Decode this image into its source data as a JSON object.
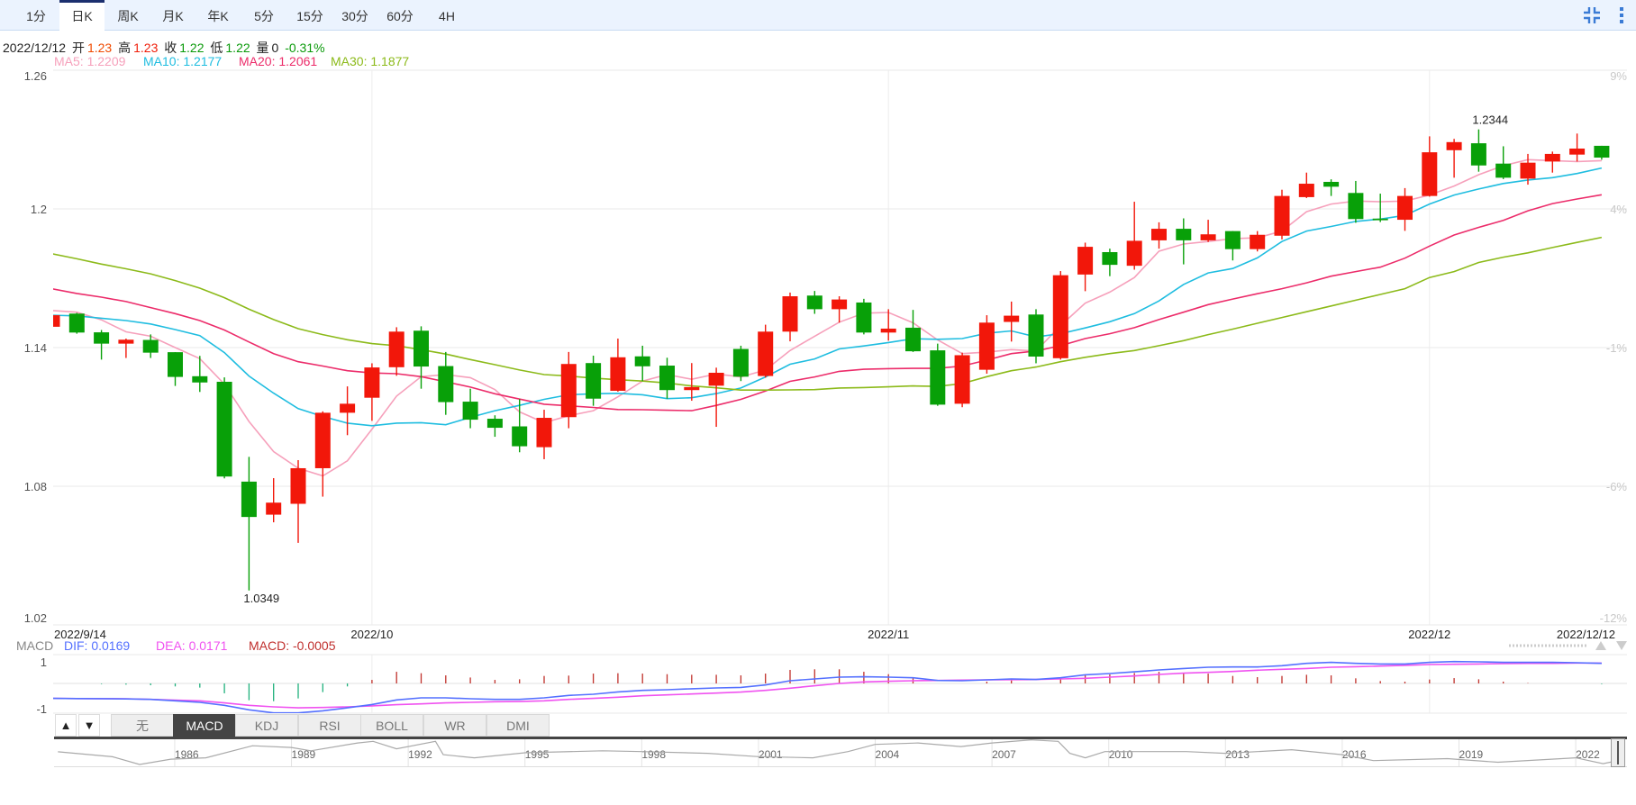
{
  "toolbar": {
    "tabs": [
      "1分",
      "日K",
      "周K",
      "月K",
      "年K",
      "5分",
      "15分",
      "30分",
      "60分",
      "4H"
    ],
    "active_tab": "日K",
    "icons": [
      "compress-icon",
      "more-vertical-icon"
    ]
  },
  "info": {
    "date": "2022/12/12",
    "open_label": "开",
    "open": "1.23",
    "high_label": "高",
    "high": "1.23",
    "close_label": "收",
    "close": "1.22",
    "low_label": "低",
    "low": "1.22",
    "vol_label": "量",
    "vol": "0",
    "change": "-0.31%"
  },
  "ma_legend": {
    "ma5": "MA5: 1.2209",
    "ma10": "MA10: 1.2177",
    "ma20": "MA20: 1.2061",
    "ma30": "MA30: 1.1877"
  },
  "macd_legend": {
    "title": "MACD",
    "dif": "DIF: 0.0169",
    "dea": "DEA: 0.0171",
    "macd": "MACD: -0.0005"
  },
  "indicator_tabs": [
    "无",
    "MACD",
    "KDJ",
    "RSI",
    "BOLL",
    "WR",
    "DMI"
  ],
  "active_indicator": "MACD",
  "arrow_buttons": [
    "▲",
    "▼"
  ],
  "colors": {
    "up": "#f2170a",
    "down": "#08a008",
    "ma5": "#f6a0bb",
    "ma10": "#1fbde0",
    "ma20": "#ec2c6a",
    "ma30": "#8cba1a",
    "dif": "#5470ff",
    "dea": "#f052f0",
    "macd_legend": "#c0302e",
    "hist_up": "#c0302a",
    "hist_down": "#1fb07c"
  },
  "chart_data": [
    {
      "type": "candlestick",
      "ylim": [
        1.02,
        1.26
      ],
      "y_ticks": [
        {
          "value": 1.26,
          "label": "1.26"
        },
        {
          "value": 1.2,
          "label": "1.2"
        },
        {
          "value": 1.14,
          "label": "1.14"
        },
        {
          "value": 1.08,
          "label": "1.08"
        },
        {
          "value": 1.02,
          "label": "1.02"
        }
      ],
      "y_ticks_right": [
        "9%",
        "4%",
        "-1%",
        "-6%",
        "-12%"
      ],
      "x_labels": [
        {
          "index": 0,
          "label": "2022/9/14"
        },
        {
          "index": 13,
          "label": "2022/10"
        },
        {
          "index": 34,
          "label": "2022/11"
        },
        {
          "index": 56,
          "label": "2022/12"
        },
        {
          "index": 63,
          "label": "2022/12/12"
        }
      ],
      "annotations": [
        {
          "index": 8,
          "value": 1.0349,
          "label": "1.0349",
          "pos": "below"
        },
        {
          "index": 58,
          "value": 1.2344,
          "label": "1.2344",
          "pos": "above"
        }
      ],
      "ohlc": [
        [
          1.149,
          1.1545,
          1.1488,
          1.154
        ],
        [
          1.1547,
          1.155,
          1.146,
          1.1465
        ],
        [
          1.1466,
          1.1476,
          1.1348,
          1.1417
        ],
        [
          1.1417,
          1.1439,
          1.1355,
          1.1434
        ],
        [
          1.1433,
          1.1457,
          1.1355,
          1.1378
        ],
        [
          1.138,
          1.138,
          1.1234,
          1.1273
        ],
        [
          1.1276,
          1.1364,
          1.1208,
          1.1249
        ],
        [
          1.1252,
          1.1271,
          1.0834,
          1.0842
        ],
        [
          1.082,
          1.0927,
          1.0349,
          1.0667
        ],
        [
          1.0677,
          1.0835,
          1.0644,
          1.0729
        ],
        [
          1.0724,
          1.0913,
          1.0555,
          1.0878
        ],
        [
          1.0878,
          1.1124,
          1.0755,
          1.1118
        ],
        [
          1.1118,
          1.1232,
          1.1021,
          1.1157
        ],
        [
          1.1183,
          1.1332,
          1.1083,
          1.1314
        ],
        [
          1.1315,
          1.1488,
          1.1278,
          1.1469
        ],
        [
          1.1473,
          1.1492,
          1.1222,
          1.1318
        ],
        [
          1.132,
          1.1381,
          1.1109,
          1.1164
        ],
        [
          1.1166,
          1.1222,
          1.1051,
          1.1088
        ],
        [
          1.1092,
          1.1107,
          1.1014,
          1.1053
        ],
        [
          1.1059,
          1.1177,
          1.0947,
          1.0973
        ],
        [
          1.0969,
          1.1131,
          1.0917,
          1.1096
        ],
        [
          1.1099,
          1.1381,
          1.1051,
          1.1329
        ],
        [
          1.1333,
          1.1365,
          1.1148,
          1.1179
        ],
        [
          1.1213,
          1.1439,
          1.1209,
          1.1358
        ],
        [
          1.1362,
          1.1408,
          1.1255,
          1.1319
        ],
        [
          1.1322,
          1.1356,
          1.1179,
          1.1216
        ],
        [
          1.1216,
          1.1333,
          1.117,
          1.1229
        ],
        [
          1.1235,
          1.1313,
          1.1057,
          1.1291
        ],
        [
          1.1394,
          1.1408,
          1.1255,
          1.1274
        ],
        [
          1.1277,
          1.1499,
          1.127,
          1.1469
        ],
        [
          1.1469,
          1.1638,
          1.1427,
          1.1622
        ],
        [
          1.1625,
          1.1645,
          1.1546,
          1.1566
        ],
        [
          1.1566,
          1.1622,
          1.1508,
          1.1608
        ],
        [
          1.1595,
          1.1611,
          1.1457,
          1.1465
        ],
        [
          1.1465,
          1.1566,
          1.143,
          1.1482
        ],
        [
          1.1486,
          1.1563,
          1.1381,
          1.1384
        ],
        [
          1.1388,
          1.1417,
          1.1148,
          1.1153
        ],
        [
          1.1157,
          1.1378,
          1.1142,
          1.1367
        ],
        [
          1.1304,
          1.154,
          1.1287,
          1.1508
        ],
        [
          1.1511,
          1.1599,
          1.1426,
          1.1538
        ],
        [
          1.1543,
          1.1566,
          1.1332,
          1.1361
        ],
        [
          1.1354,
          1.1731,
          1.1348,
          1.1713
        ],
        [
          1.1716,
          1.1854,
          1.1644,
          1.1836
        ],
        [
          1.1813,
          1.1828,
          1.1709,
          1.1758
        ],
        [
          1.1754,
          1.2031,
          1.1737,
          1.1862
        ],
        [
          1.1864,
          1.1942,
          1.1828,
          1.1914
        ],
        [
          1.1914,
          1.1959,
          1.176,
          1.1864
        ],
        [
          1.1864,
          1.1953,
          1.1857,
          1.189
        ],
        [
          1.1904,
          1.1904,
          1.1777,
          1.1826
        ],
        [
          1.1826,
          1.1904,
          1.1816,
          1.1888
        ],
        [
          1.1884,
          1.2083,
          1.1868,
          1.2056
        ],
        [
          1.2051,
          1.2157,
          1.2047,
          1.2109
        ],
        [
          1.2117,
          1.2128,
          1.2056,
          1.2096
        ],
        [
          1.2069,
          1.2121,
          1.194,
          1.1956
        ],
        [
          1.1958,
          1.2066,
          1.1943,
          1.1951
        ],
        [
          1.1953,
          1.209,
          1.1905,
          1.2056
        ],
        [
          1.2056,
          1.2314,
          1.2053,
          1.2245
        ],
        [
          1.2254,
          1.2303,
          1.2135,
          1.2289
        ],
        [
          1.2284,
          1.2344,
          1.2161,
          1.2188
        ],
        [
          1.2196,
          1.2271,
          1.2129,
          1.2135
        ],
        [
          1.2131,
          1.2238,
          1.2105,
          1.22
        ],
        [
          1.2205,
          1.2248,
          1.2157,
          1.2238
        ],
        [
          1.2235,
          1.2326,
          1.2205,
          1.2261
        ],
        [
          1.2273,
          1.2273,
          1.2213,
          1.2222
        ]
      ],
      "series": [
        {
          "name": "MA5",
          "values": [
            1.156,
            1.1553,
            1.152,
            1.1468,
            1.1449,
            1.14,
            1.1352,
            1.1242,
            1.108,
            1.095,
            1.0878,
            1.0845,
            1.091,
            1.1047,
            1.119,
            1.1274,
            1.1283,
            1.127,
            1.1218,
            1.1122,
            1.1075,
            1.1105,
            1.1127,
            1.1187,
            1.1255,
            1.1283,
            1.1263,
            1.1286,
            1.1273,
            1.1303,
            1.1387,
            1.1449,
            1.151,
            1.1549,
            1.1552,
            1.1507,
            1.1433,
            1.1374,
            1.138,
            1.1391,
            1.1385,
            1.1495,
            1.1592,
            1.164,
            1.1703,
            1.1817,
            1.1848,
            1.1859,
            1.1871,
            1.1875,
            1.1904,
            1.1988,
            1.2021,
            1.2034,
            1.2031,
            1.2034,
            1.206,
            1.2099,
            1.2148,
            1.2187,
            1.2213,
            1.2209,
            1.2205,
            1.2209
          ]
        },
        {
          "name": "MA10",
          "values": [
            1.154,
            1.1537,
            1.1527,
            1.1517,
            1.1502,
            1.1478,
            1.1452,
            1.1378,
            1.1277,
            1.1203,
            1.1136,
            1.1102,
            1.1073,
            1.1062,
            1.1073,
            1.1075,
            1.1066,
            1.1098,
            1.1127,
            1.115,
            1.1176,
            1.1196,
            1.12,
            1.1202,
            1.1196,
            1.1179,
            1.1183,
            1.1201,
            1.1225,
            1.1273,
            1.1328,
            1.1351,
            1.1394,
            1.1407,
            1.1422,
            1.1438,
            1.1436,
            1.1439,
            1.1462,
            1.1472,
            1.1446,
            1.146,
            1.1485,
            1.1512,
            1.1547,
            1.1602,
            1.1673,
            1.1723,
            1.1742,
            1.1788,
            1.1859,
            1.1904,
            1.1924,
            1.1946,
            1.1956,
            1.1972,
            1.2021,
            1.206,
            1.2086,
            1.211,
            1.2125,
            1.2135,
            1.2153,
            1.2177
          ]
        },
        {
          "name": "MA20",
          "values": [
            1.1654,
            1.1634,
            1.1618,
            1.1599,
            1.1573,
            1.1547,
            1.1517,
            1.1476,
            1.1424,
            1.1374,
            1.1339,
            1.132,
            1.13,
            1.129,
            1.1287,
            1.1274,
            1.1252,
            1.1229,
            1.12,
            1.1177,
            1.1155,
            1.1148,
            1.1141,
            1.1132,
            1.1131,
            1.1129,
            1.1127,
            1.115,
            1.1176,
            1.1212,
            1.1254,
            1.1273,
            1.1297,
            1.1306,
            1.1309,
            1.131,
            1.131,
            1.132,
            1.1346,
            1.1374,
            1.1385,
            1.1408,
            1.1439,
            1.146,
            1.1486,
            1.1521,
            1.1553,
            1.1586,
            1.161,
            1.1633,
            1.1655,
            1.168,
            1.1709,
            1.1729,
            1.1748,
            1.1787,
            1.1839,
            1.1887,
            1.192,
            1.195,
            1.1992,
            1.2023,
            1.2043,
            1.2061
          ]
        },
        {
          "name": "MA30",
          "values": [
            1.1806,
            1.1784,
            1.1761,
            1.1741,
            1.1719,
            1.169,
            1.1657,
            1.1616,
            1.1566,
            1.1521,
            1.1482,
            1.1456,
            1.1434,
            1.1417,
            1.1408,
            1.1391,
            1.1372,
            1.1348,
            1.1326,
            1.1303,
            1.1283,
            1.1277,
            1.1268,
            1.1261,
            1.1255,
            1.1247,
            1.1234,
            1.1226,
            1.1216,
            1.1216,
            1.1217,
            1.1218,
            1.1225,
            1.1227,
            1.123,
            1.1234,
            1.1232,
            1.1244,
            1.1274,
            1.13,
            1.1316,
            1.1339,
            1.1358,
            1.1374,
            1.1387,
            1.1408,
            1.143,
            1.1456,
            1.148,
            1.1505,
            1.153,
            1.1555,
            1.158,
            1.1605,
            1.163,
            1.1655,
            1.1703,
            1.1729,
            1.1768,
            1.1791,
            1.181,
            1.1833,
            1.1855,
            1.1877
          ]
        }
      ]
    },
    {
      "type": "macd",
      "y_tick_labels": [
        "1",
        "-1"
      ],
      "dif": [
        -0.0126,
        -0.0127,
        -0.0128,
        -0.013,
        -0.0134,
        -0.0146,
        -0.0159,
        -0.0184,
        -0.0222,
        -0.0248,
        -0.0248,
        -0.023,
        -0.0205,
        -0.0177,
        -0.0139,
        -0.0121,
        -0.0121,
        -0.0129,
        -0.0134,
        -0.0134,
        -0.0121,
        -0.0101,
        -0.0091,
        -0.0071,
        -0.0058,
        -0.0053,
        -0.0045,
        -0.0038,
        -0.0033,
        -0.0013,
        0.0023,
        0.0038,
        0.0053,
        0.0056,
        0.0053,
        0.0048,
        0.0025,
        0.0023,
        0.003,
        0.0038,
        0.0033,
        0.0048,
        0.0073,
        0.0083,
        0.0098,
        0.0114,
        0.0126,
        0.0136,
        0.0139,
        0.0139,
        0.0149,
        0.0169,
        0.0177,
        0.0169,
        0.0164,
        0.0164,
        0.0177,
        0.0184,
        0.0182,
        0.0177,
        0.0177,
        0.0177,
        0.0174,
        0.0169
      ],
      "dea": [
        -0.0126,
        -0.0127,
        -0.0128,
        -0.0129,
        -0.0134,
        -0.0141,
        -0.0146,
        -0.0164,
        -0.0184,
        -0.0197,
        -0.0205,
        -0.0202,
        -0.0197,
        -0.0189,
        -0.0179,
        -0.0172,
        -0.0164,
        -0.0159,
        -0.0154,
        -0.0152,
        -0.0146,
        -0.0134,
        -0.0126,
        -0.0116,
        -0.0104,
        -0.0096,
        -0.0089,
        -0.0081,
        -0.0073,
        -0.0058,
        -0.004,
        -0.002,
        0.0,
        0.0013,
        0.0018,
        0.0023,
        0.0025,
        0.0028,
        0.003,
        0.0032,
        0.0033,
        0.0038,
        0.0043,
        0.0053,
        0.0063,
        0.0076,
        0.0086,
        0.0093,
        0.0101,
        0.0111,
        0.0119,
        0.0126,
        0.0136,
        0.0141,
        0.0146,
        0.0152,
        0.0159,
        0.0161,
        0.0164,
        0.0167,
        0.0169,
        0.0169,
        0.0172,
        0.0171
      ],
      "macd": [
        0,
        0,
        -0.0005,
        -0.001,
        -0.0015,
        -0.0025,
        -0.0035,
        -0.0083,
        -0.0141,
        -0.0149,
        -0.0126,
        -0.0073,
        -0.0025,
        0.003,
        0.0098,
        0.0086,
        0.0068,
        0.005,
        0.003,
        0.0035,
        0.0063,
        0.0066,
        0.0083,
        0.0086,
        0.0083,
        0.0078,
        0.0073,
        0.0073,
        0.0068,
        0.0083,
        0.0114,
        0.0119,
        0.0119,
        0.0098,
        0.0078,
        0.005,
        0,
        0,
        0.0015,
        0.0025,
        0,
        0.0035,
        0.0073,
        0.0076,
        0.0088,
        0.0098,
        0.0091,
        0.0083,
        0.0063,
        0.0053,
        0.0063,
        0.0073,
        0.0068,
        0.0043,
        0.002,
        0.0015,
        0.0033,
        0.0045,
        0.0035,
        0.0015,
        0.0003,
        0,
        0,
        -0.0005
      ]
    }
  ],
  "navigator": {
    "year_labels": [
      "1986",
      "1989",
      "1992",
      "1995",
      "1998",
      "2001",
      "2004",
      "2007",
      "2010",
      "2013",
      "2016",
      "2019",
      "2022"
    ],
    "series": [
      [
        1983.0,
        1.156
      ],
      [
        1984.4,
        0.976
      ],
      [
        1985.1,
        0.7
      ],
      [
        1985.9,
        0.89
      ],
      [
        1986.8,
        0.94
      ],
      [
        1988.0,
        1.37
      ],
      [
        1989.0,
        1.31
      ],
      [
        1989.5,
        1.19
      ],
      [
        1990.7,
        1.47
      ],
      [
        1991.1,
        1.53
      ],
      [
        1991.7,
        1.26
      ],
      [
        1992.7,
        1.53
      ],
      [
        1992.9,
        1.05
      ],
      [
        1993.7,
        0.94
      ],
      [
        1995.0,
        1.12
      ],
      [
        1997.0,
        1.19
      ],
      [
        1998.0,
        1.16
      ],
      [
        1999.7,
        1.1
      ],
      [
        2001.0,
        0.98
      ],
      [
        2002.4,
        0.94
      ],
      [
        2003.3,
        1.16
      ],
      [
        2004.0,
        1.42
      ],
      [
        2005.1,
        1.47
      ],
      [
        2006.2,
        1.34
      ],
      [
        2007.0,
        1.47
      ],
      [
        2008.0,
        1.58
      ],
      [
        2008.7,
        1.53
      ],
      [
        2009.0,
        1.1
      ],
      [
        2009.4,
        0.94
      ],
      [
        2009.9,
        1.16
      ],
      [
        2012.0,
        1.16
      ],
      [
        2013.0,
        1.1
      ],
      [
        2014.7,
        1.23
      ],
      [
        2016.0,
        1.05
      ],
      [
        2016.8,
        0.84
      ],
      [
        2018.7,
        0.91
      ],
      [
        2020.0,
        0.78
      ],
      [
        2022.0,
        0.94
      ],
      [
        2022.7,
        0.73
      ],
      [
        2022.95,
        0.8
      ]
    ]
  }
}
